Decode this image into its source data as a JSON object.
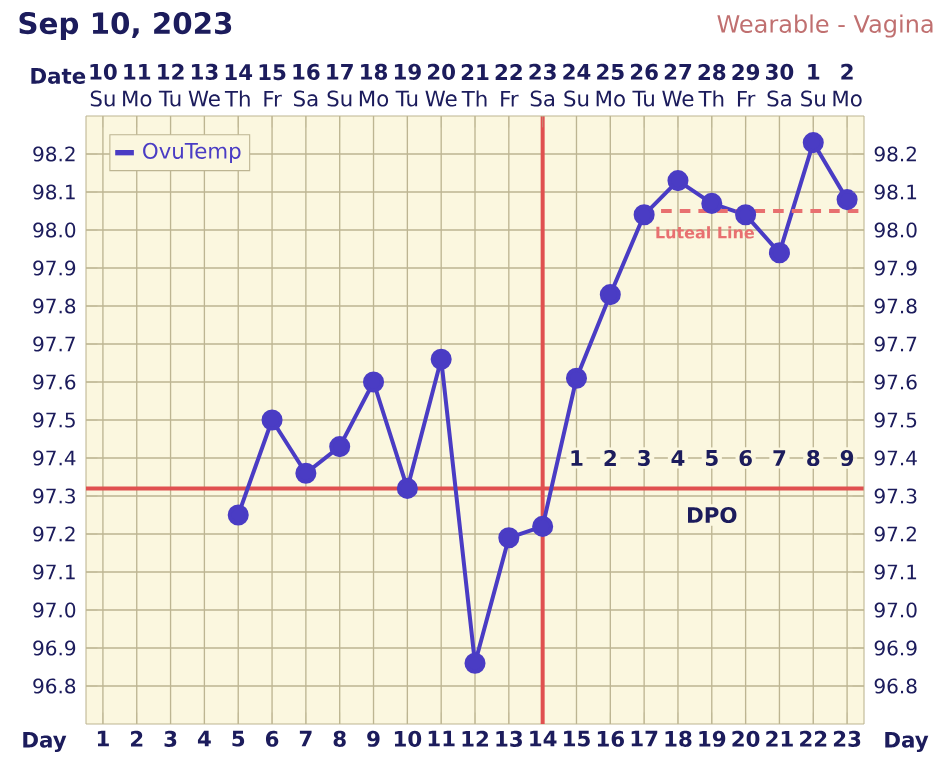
{
  "chart_data": {
    "type": "line",
    "title": "Sep 10, 2023",
    "subtitle": "Wearable - Vagina",
    "xlabel": "Day",
    "x2label": "Date",
    "series": [
      {
        "name": "OvuTemp",
        "color": "#4a3cc4",
        "x": [
          5,
          6,
          7,
          8,
          9,
          10,
          11,
          12,
          13,
          14,
          15,
          16,
          17,
          18,
          19,
          20,
          21,
          22,
          23
        ],
        "values": [
          97.25,
          97.5,
          97.36,
          97.43,
          97.6,
          97.32,
          97.66,
          96.86,
          97.19,
          97.22,
          97.61,
          97.83,
          98.04,
          98.13,
          98.07,
          98.04,
          97.94,
          98.23,
          98.08
        ]
      },
      {
        "name": "Luteal Line",
        "type": "line",
        "color": "#e87070",
        "line_style": "dashed",
        "marker": "none",
        "x": [
          17.5,
          23.5
        ],
        "values": [
          98.05,
          98.05
        ]
      }
    ],
    "xlim": [
      0.5,
      23.5
    ],
    "xticks": [
      1,
      2,
      3,
      4,
      5,
      6,
      7,
      8,
      9,
      10,
      11,
      12,
      13,
      14,
      15,
      16,
      17,
      18,
      19,
      20,
      21,
      22,
      23
    ],
    "x2lim": [
      "2023-09-09T12:00",
      "2023-10-02T12:00"
    ],
    "x2ticks": [
      {
        "value": "2023-09-10",
        "label": "10"
      },
      {
        "value": "2023-09-11",
        "label": "11"
      },
      {
        "value": "2023-09-12",
        "label": "12"
      },
      {
        "value": "2023-09-13",
        "label": "13"
      },
      {
        "value": "2023-09-14",
        "label": "14"
      },
      {
        "value": "2023-09-15",
        "label": "15"
      },
      {
        "value": "2023-09-16",
        "label": "16"
      },
      {
        "value": "2023-09-17",
        "label": "17"
      },
      {
        "value": "2023-09-18",
        "label": "18"
      },
      {
        "value": "2023-09-19",
        "label": "19"
      },
      {
        "value": "2023-09-20",
        "label": "20"
      },
      {
        "value": "2023-09-21",
        "label": "21"
      },
      {
        "value": "2023-09-22",
        "label": "22"
      },
      {
        "value": "2023-09-23",
        "label": "23"
      },
      {
        "value": "2023-09-24",
        "label": "24"
      },
      {
        "value": "2023-09-25",
        "label": "25"
      },
      {
        "value": "2023-09-26",
        "label": "26"
      },
      {
        "value": "2023-09-27",
        "label": "27"
      },
      {
        "value": "2023-09-28",
        "label": "28"
      },
      {
        "value": "2023-09-29",
        "label": "29"
      },
      {
        "value": "2023-09-30",
        "label": "30"
      },
      {
        "value": "2023-10-01",
        "label": "1"
      },
      {
        "value": "2023-10-02",
        "label": "2"
      }
    ],
    "ylim": [
      96.7,
      98.3
    ],
    "yticks": [
      96.8,
      96.9,
      {
        "value": 97,
        "label": "97.0"
      },
      97.1,
      97.2,
      97.3,
      97.4,
      97.5,
      97.6,
      97.7,
      97.8,
      97.9,
      {
        "value": 98,
        "label": "98.0"
      },
      98.1,
      98.2
    ],
    "y2lim": [
      96.7,
      98.3
    ],
    "y2ticks": [
      96.8,
      96.9,
      {
        "value": 97,
        "label": "97.0"
      },
      97.1,
      97.2,
      97.3,
      97.4,
      97.5,
      97.6,
      97.7,
      97.8,
      97.9,
      {
        "value": 98,
        "label": "98.0"
      },
      98.1,
      98.2
    ],
    "ref_lines": [
      {
        "axis": "x",
        "value": 14,
        "color": "#e05050"
      },
      {
        "axis": "y",
        "value": 97.32,
        "color": "#e05050"
      }
    ],
    "annotations": [
      "Su",
      "Mo",
      "Tu",
      "We",
      "Th",
      "Fr",
      "Sa",
      "Su",
      "Mo",
      "Tu",
      "We",
      "Th",
      "Fr",
      "Sa",
      "Su",
      "Mo",
      "Tu",
      "We",
      "Th",
      "Fr",
      "Sa",
      "Su",
      "Mo",
      {
        "text": "1",
        "x": 15,
        "y": 97.4
      },
      {
        "text": "2",
        "x": 16,
        "y": 97.4
      },
      {
        "text": "3",
        "x": 17,
        "y": 97.4
      },
      {
        "text": "4",
        "x": 18,
        "y": 97.4
      },
      {
        "text": "5",
        "x": 19,
        "y": 97.4
      },
      {
        "text": "6",
        "x": 20,
        "y": 97.4
      },
      {
        "text": "7",
        "x": 21,
        "y": 97.4
      },
      {
        "text": "8",
        "x": 22,
        "y": 97.4
      },
      {
        "text": "9",
        "x": 23,
        "y": 97.4
      },
      {
        "text": "DPO",
        "x": 19,
        "y": 97.25
      }
    ],
    "grid": true,
    "legend": "top left",
    "marker": "circle",
    "line_style": "solid"
  }
}
